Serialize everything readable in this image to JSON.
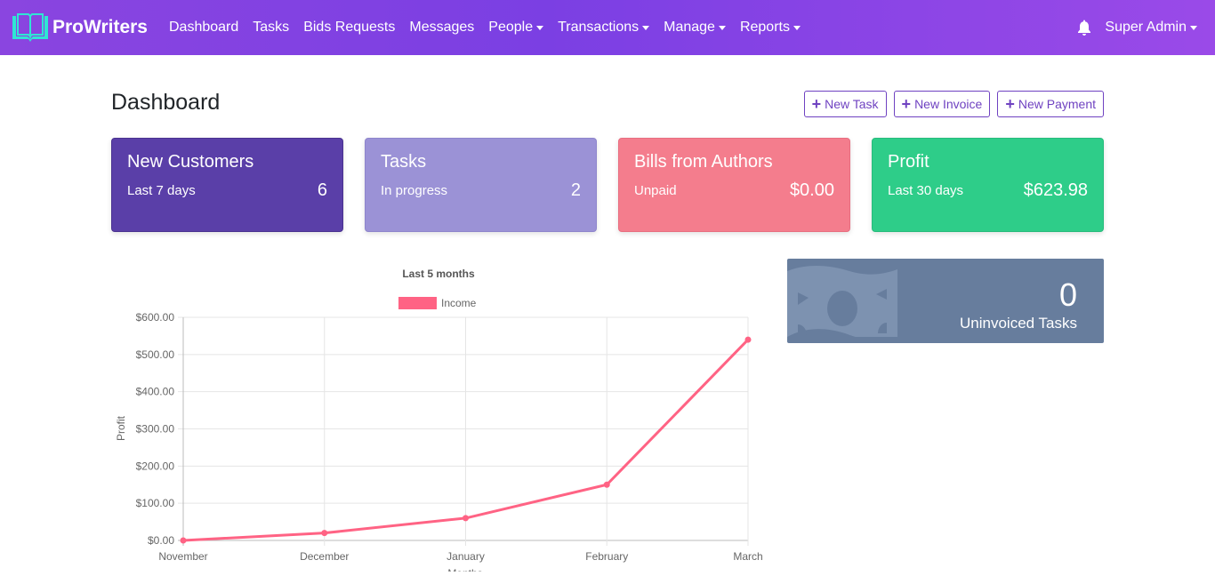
{
  "navbar": {
    "brand": "ProWriters",
    "links": [
      {
        "label": "Dashboard",
        "dropdown": false
      },
      {
        "label": "Tasks",
        "dropdown": false
      },
      {
        "label": "Bids Requests",
        "dropdown": false
      },
      {
        "label": "Messages",
        "dropdown": false
      },
      {
        "label": "People",
        "dropdown": true
      },
      {
        "label": "Transactions",
        "dropdown": true
      },
      {
        "label": "Manage",
        "dropdown": true
      },
      {
        "label": "Reports",
        "dropdown": true
      }
    ],
    "user": "Super Admin",
    "colors": {
      "gradient_start": "#8a45e0",
      "gradient_end": "#9a4ae8"
    }
  },
  "header": {
    "title": "Dashboard",
    "actions": {
      "new_task": "New Task",
      "new_invoice": "New Invoice",
      "new_payment": "New Payment"
    }
  },
  "cards": [
    {
      "title": "New Customers",
      "subtitle": "Last 7 days",
      "value": "6",
      "color": "#5a3fa8"
    },
    {
      "title": "Tasks",
      "subtitle": "In progress",
      "value": "2",
      "color": "#9b92d6"
    },
    {
      "title": "Bills from Authors",
      "subtitle": "Unpaid",
      "value": "$0.00",
      "color": "#f47d8d"
    },
    {
      "title": "Profit",
      "subtitle": "Last 30 days",
      "value": "$623.98",
      "color": "#2ecd89"
    }
  ],
  "uninvoiced": {
    "count": "0",
    "label": "Uninvoiced Tasks",
    "icon": "money-bill-icon",
    "color": "#677d9d"
  },
  "chart_data": {
    "type": "line",
    "title": "Last 5 months",
    "xlabel": "Months",
    "ylabel": "Profit",
    "categories": [
      "November",
      "December",
      "January",
      "February",
      "March"
    ],
    "series": [
      {
        "name": "Income",
        "values": [
          0,
          20,
          60,
          150,
          540
        ],
        "color": "#ff6384"
      }
    ],
    "ylim": [
      0,
      600
    ],
    "yticks": [
      "$0.00",
      "$100.00",
      "$200.00",
      "$300.00",
      "$400.00",
      "$500.00",
      "$600.00"
    ],
    "grid": true,
    "legend_position": "top"
  }
}
